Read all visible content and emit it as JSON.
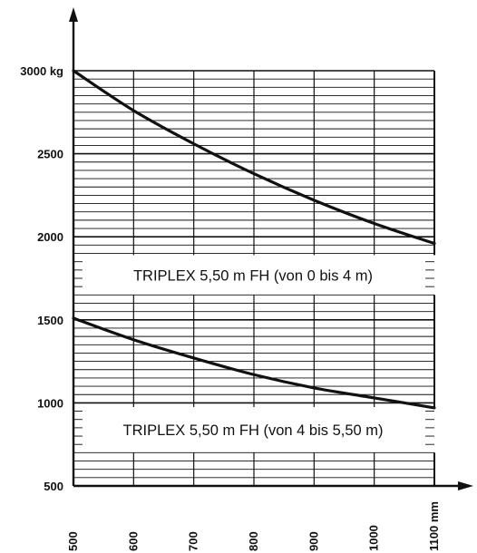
{
  "chart_data": {
    "type": "line",
    "xlim": [
      500,
      1100
    ],
    "ylim": [
      500,
      3000
    ],
    "x_ticks": [
      "500",
      "600",
      "700",
      "800",
      "900",
      "1000",
      "1100 mm"
    ],
    "y_ticks": [
      "3000 kg",
      "2500",
      "2000",
      "1500",
      "1000",
      "500"
    ],
    "grid": true,
    "series": [
      {
        "name": "TRIPLEX 5,50 m FH (von 0 bis 4 m)",
        "x": [
          500,
          600,
          700,
          800,
          900,
          1000,
          1100
        ],
        "y": [
          3000,
          2760,
          2560,
          2380,
          2220,
          2080,
          1960
        ]
      },
      {
        "name": "TRIPLEX 5,50 m FH (von 4 bis 5,50 m)",
        "x": [
          500,
          600,
          700,
          800,
          900,
          1000,
          1100
        ],
        "y": [
          1510,
          1380,
          1270,
          1170,
          1090,
          1030,
          970
        ]
      }
    ]
  }
}
